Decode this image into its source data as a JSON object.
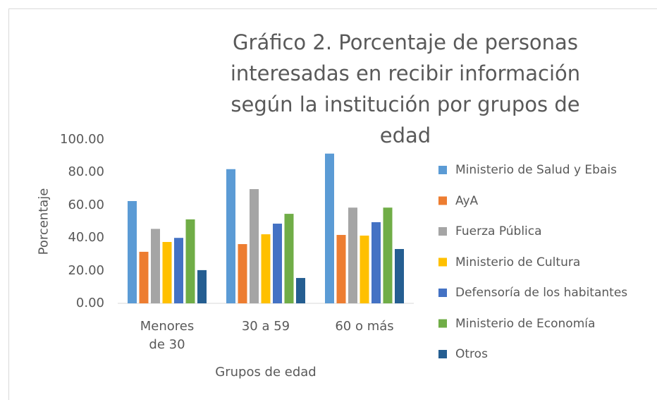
{
  "chart_data": {
    "type": "bar",
    "title": "Gráfico 2. Porcentaje de personas interesadas en recibir información según la institución por grupos de edad",
    "x_label": "Grupos de edad",
    "y_label": "Porcentaje",
    "categories": [
      "Menores de 30",
      "30 a 59",
      "60 o más"
    ],
    "series": [
      {
        "name": "Ministerio de Salud y Ebais",
        "color": "#5b9bd5",
        "values": [
          62.5,
          82,
          91.5
        ]
      },
      {
        "name": "AyA",
        "color": "#ed7d31",
        "values": [
          31.5,
          36.2,
          41.8
        ]
      },
      {
        "name": "Fuerza Pública",
        "color": "#a5a5a5",
        "values": [
          45.5,
          69.8,
          58.5
        ]
      },
      {
        "name": "Ministerio de Cultura",
        "color": "#ffc000",
        "values": [
          37.5,
          42.2,
          41.4
        ]
      },
      {
        "name": "Defensoría de los habitantes",
        "color": "#4472c4",
        "values": [
          40,
          48.7,
          49.6
        ]
      },
      {
        "name": "Ministerio de Economía",
        "color": "#70ad47",
        "values": [
          51.3,
          54.7,
          58.5
        ]
      },
      {
        "name": "Otros",
        "color": "#255e91",
        "values": [
          20.3,
          15.5,
          33.2
        ]
      }
    ],
    "ylim": [
      0,
      100
    ],
    "yticks": [
      {
        "value": 0,
        "label": "0.00"
      },
      {
        "value": 20,
        "label": "20.00"
      },
      {
        "value": 40,
        "label": "40.00"
      },
      {
        "value": 60,
        "label": "60.00"
      },
      {
        "value": 80,
        "label": "80.00"
      },
      {
        "value": 100,
        "label": "100.00"
      }
    ],
    "grid": false,
    "legend": "right"
  }
}
